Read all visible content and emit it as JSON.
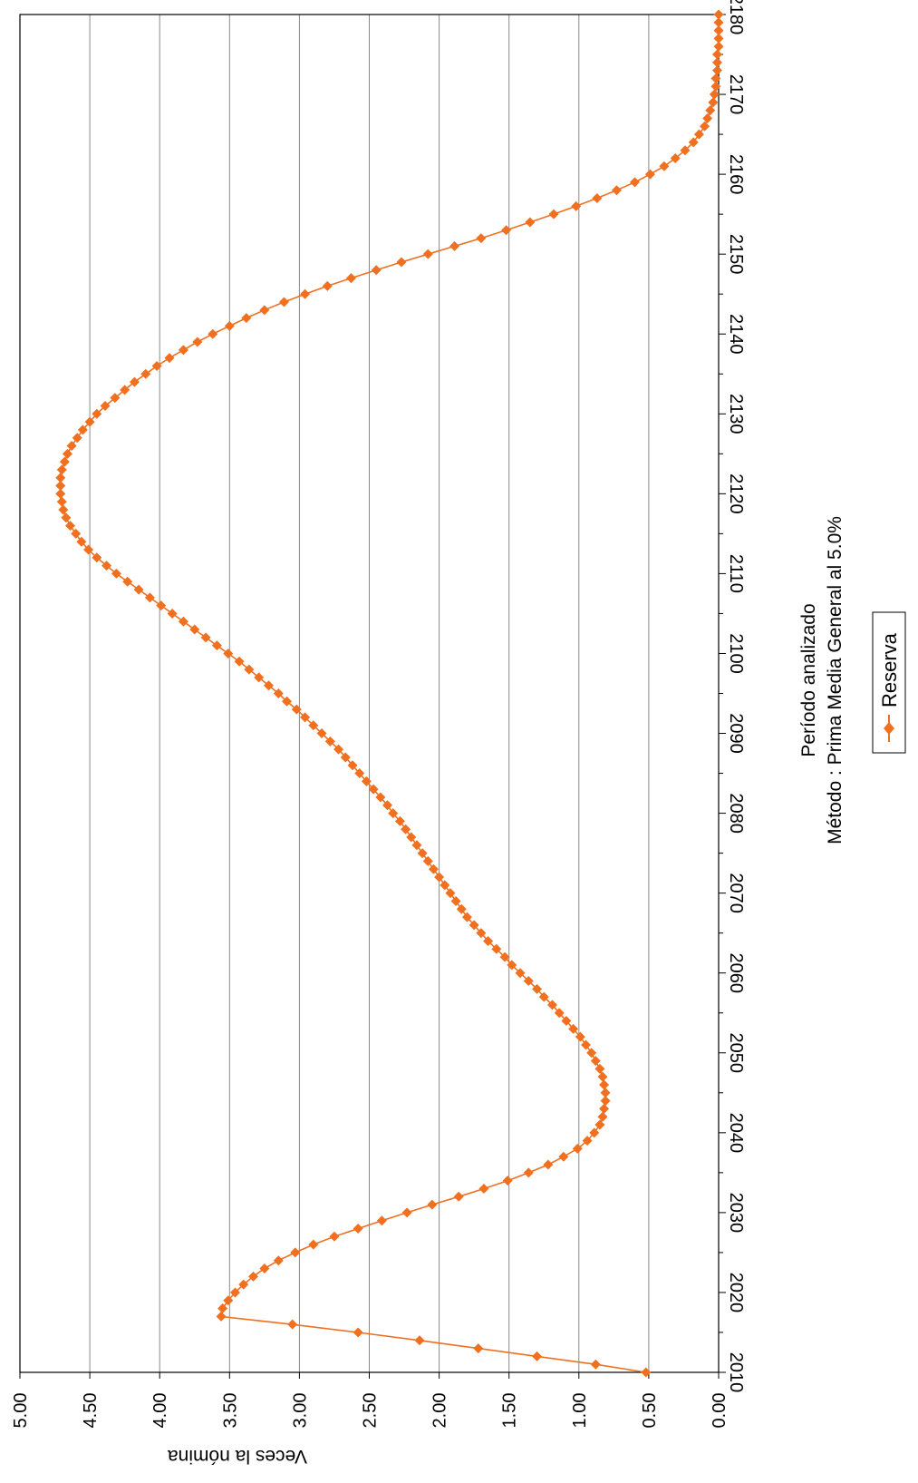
{
  "chart_data": {
    "type": "line",
    "title": "",
    "xlabel": "Período analizado",
    "xlabel_sub": "Método : Prima Media General al 5.0%",
    "ylabel": "Veces la nómina",
    "xlim": [
      2010,
      2180
    ],
    "ylim": [
      0.0,
      5.0
    ],
    "x_ticks": [
      "2010",
      "2020",
      "2030",
      "2040",
      "2050",
      "2060",
      "2070",
      "2080",
      "2090",
      "2100",
      "2110",
      "2120",
      "2130",
      "2140",
      "2150",
      "2160",
      "2170",
      "2180"
    ],
    "y_ticks": [
      "0.00",
      "0.50",
      "1.00",
      "1.50",
      "2.00",
      "2.50",
      "3.00",
      "3.50",
      "4.00",
      "4.50",
      "5.00"
    ],
    "grid": "horizontal",
    "orientation": "rotated-90-clockwise",
    "legend_position": "bottom",
    "series": [
      {
        "name": "Reserva",
        "color": "#F07020",
        "marker": "diamond",
        "points": [
          [
            2010,
            0.52
          ],
          [
            2011,
            0.88
          ],
          [
            2012,
            1.3
          ],
          [
            2013,
            1.72
          ],
          [
            2014,
            2.14
          ],
          [
            2015,
            2.58
          ],
          [
            2016,
            3.05
          ],
          [
            2017,
            3.56
          ],
          [
            2018,
            3.55
          ],
          [
            2019,
            3.51
          ],
          [
            2020,
            3.46
          ],
          [
            2021,
            3.4
          ],
          [
            2022,
            3.33
          ],
          [
            2023,
            3.25
          ],
          [
            2024,
            3.15
          ],
          [
            2025,
            3.03
          ],
          [
            2026,
            2.9
          ],
          [
            2027,
            2.75
          ],
          [
            2028,
            2.58
          ],
          [
            2029,
            2.41
          ],
          [
            2030,
            2.23
          ],
          [
            2031,
            2.05
          ],
          [
            2032,
            1.86
          ],
          [
            2033,
            1.68
          ],
          [
            2034,
            1.51
          ],
          [
            2035,
            1.36
          ],
          [
            2036,
            1.22
          ],
          [
            2037,
            1.11
          ],
          [
            2038,
            1.01
          ],
          [
            2039,
            0.94
          ],
          [
            2040,
            0.89
          ],
          [
            2041,
            0.85
          ],
          [
            2042,
            0.83
          ],
          [
            2043,
            0.82
          ],
          [
            2044,
            0.81
          ],
          [
            2045,
            0.81
          ],
          [
            2046,
            0.82
          ],
          [
            2047,
            0.83
          ],
          [
            2048,
            0.85
          ],
          [
            2049,
            0.88
          ],
          [
            2050,
            0.91
          ],
          [
            2051,
            0.95
          ],
          [
            2052,
            0.99
          ],
          [
            2053,
            1.04
          ],
          [
            2054,
            1.09
          ],
          [
            2055,
            1.14
          ],
          [
            2056,
            1.19
          ],
          [
            2057,
            1.25
          ],
          [
            2058,
            1.3
          ],
          [
            2059,
            1.36
          ],
          [
            2060,
            1.42
          ],
          [
            2061,
            1.48
          ],
          [
            2062,
            1.53
          ],
          [
            2063,
            1.59
          ],
          [
            2064,
            1.65
          ],
          [
            2065,
            1.7
          ],
          [
            2066,
            1.75
          ],
          [
            2067,
            1.8
          ],
          [
            2068,
            1.84
          ],
          [
            2069,
            1.88
          ],
          [
            2070,
            1.92
          ],
          [
            2071,
            1.96
          ],
          [
            2072,
            2.0
          ],
          [
            2073,
            2.04
          ],
          [
            2074,
            2.08
          ],
          [
            2075,
            2.12
          ],
          [
            2076,
            2.16
          ],
          [
            2077,
            2.2
          ],
          [
            2078,
            2.24
          ],
          [
            2079,
            2.28
          ],
          [
            2080,
            2.33
          ],
          [
            2081,
            2.37
          ],
          [
            2082,
            2.42
          ],
          [
            2083,
            2.47
          ],
          [
            2084,
            2.52
          ],
          [
            2085,
            2.57
          ],
          [
            2086,
            2.62
          ],
          [
            2087,
            2.67
          ],
          [
            2088,
            2.72
          ],
          [
            2089,
            2.78
          ],
          [
            2090,
            2.84
          ],
          [
            2091,
            2.9
          ],
          [
            2092,
            2.96
          ],
          [
            2093,
            3.02
          ],
          [
            2094,
            3.09
          ],
          [
            2095,
            3.15
          ],
          [
            2096,
            3.22
          ],
          [
            2097,
            3.29
          ],
          [
            2098,
            3.36
          ],
          [
            2099,
            3.43
          ],
          [
            2100,
            3.51
          ],
          [
            2101,
            3.59
          ],
          [
            2102,
            3.67
          ],
          [
            2103,
            3.75
          ],
          [
            2104,
            3.83
          ],
          [
            2105,
            3.91
          ],
          [
            2106,
            3.99
          ],
          [
            2107,
            4.07
          ],
          [
            2108,
            4.15
          ],
          [
            2109,
            4.23
          ],
          [
            2110,
            4.31
          ],
          [
            2111,
            4.38
          ],
          [
            2112,
            4.45
          ],
          [
            2113,
            4.51
          ],
          [
            2114,
            4.56
          ],
          [
            2115,
            4.6
          ],
          [
            2116,
            4.64
          ],
          [
            2117,
            4.67
          ],
          [
            2118,
            4.69
          ],
          [
            2119,
            4.7
          ],
          [
            2120,
            4.71
          ],
          [
            2121,
            4.71
          ],
          [
            2122,
            4.71
          ],
          [
            2123,
            4.7
          ],
          [
            2124,
            4.68
          ],
          [
            2125,
            4.66
          ],
          [
            2126,
            4.63
          ],
          [
            2127,
            4.59
          ],
          [
            2128,
            4.55
          ],
          [
            2129,
            4.5
          ],
          [
            2130,
            4.45
          ],
          [
            2131,
            4.39
          ],
          [
            2132,
            4.32
          ],
          [
            2133,
            4.25
          ],
          [
            2134,
            4.18
          ],
          [
            2135,
            4.1
          ],
          [
            2136,
            4.02
          ],
          [
            2137,
            3.93
          ],
          [
            2138,
            3.83
          ],
          [
            2139,
            3.73
          ],
          [
            2140,
            3.62
          ],
          [
            2141,
            3.5
          ],
          [
            2142,
            3.38
          ],
          [
            2143,
            3.25
          ],
          [
            2144,
            3.11
          ],
          [
            2145,
            2.96
          ],
          [
            2146,
            2.8
          ],
          [
            2147,
            2.63
          ],
          [
            2148,
            2.45
          ],
          [
            2149,
            2.27
          ],
          [
            2150,
            2.08
          ],
          [
            2151,
            1.89
          ],
          [
            2152,
            1.7
          ],
          [
            2153,
            1.52
          ],
          [
            2154,
            1.35
          ],
          [
            2155,
            1.18
          ],
          [
            2156,
            1.02
          ],
          [
            2157,
            0.87
          ],
          [
            2158,
            0.73
          ],
          [
            2159,
            0.6
          ],
          [
            2160,
            0.49
          ],
          [
            2161,
            0.39
          ],
          [
            2162,
            0.31
          ],
          [
            2163,
            0.24
          ],
          [
            2164,
            0.18
          ],
          [
            2165,
            0.14
          ],
          [
            2166,
            0.1
          ],
          [
            2167,
            0.08
          ],
          [
            2168,
            0.06
          ],
          [
            2169,
            0.04
          ],
          [
            2170,
            0.03
          ],
          [
            2171,
            0.02
          ],
          [
            2172,
            0.02
          ],
          [
            2173,
            0.01
          ],
          [
            2174,
            0.01
          ],
          [
            2175,
            0.01
          ],
          [
            2176,
            0.0
          ],
          [
            2177,
            0.0
          ],
          [
            2178,
            0.0
          ],
          [
            2179,
            0.0
          ],
          [
            2180,
            0.0
          ]
        ]
      }
    ]
  }
}
